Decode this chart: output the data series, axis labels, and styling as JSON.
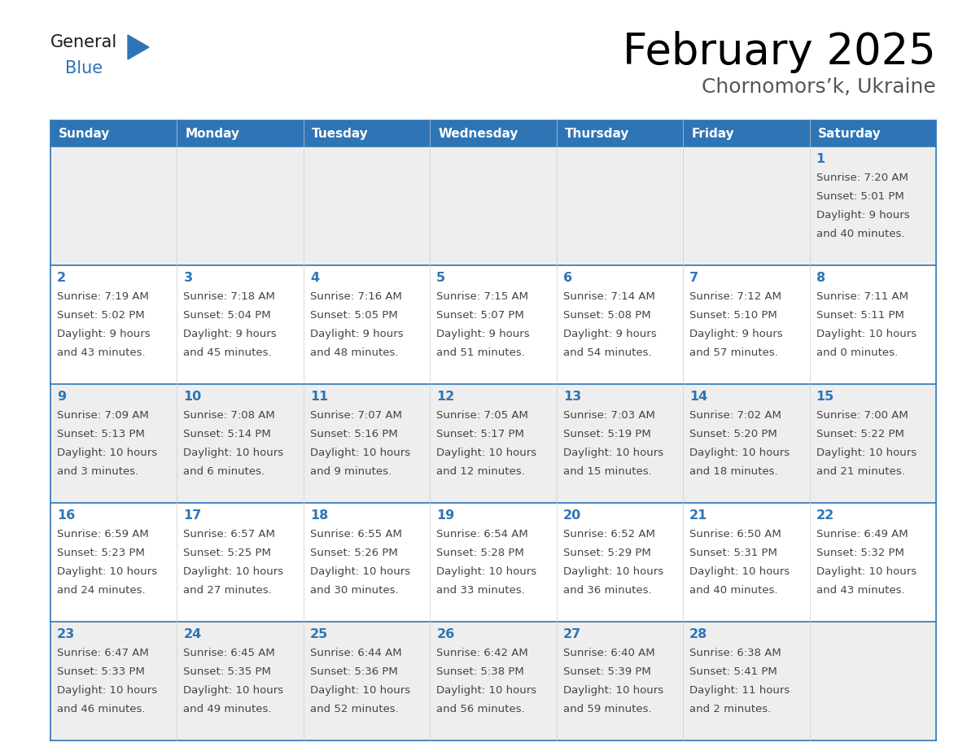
{
  "title": "February 2025",
  "subtitle": "Chornomors’k, Ukraine",
  "header_bg": "#2E75B6",
  "header_text_color": "#FFFFFF",
  "cell_bg_row0": "#EEEEEE",
  "cell_bg_row1": "#FFFFFF",
  "cell_bg_row2": "#EEEEEE",
  "cell_bg_row3": "#FFFFFF",
  "cell_bg_row4": "#EEEEEE",
  "border_color": "#2E75B6",
  "text_color": "#444444",
  "day_num_color": "#2E75B6",
  "day_headers": [
    "Sunday",
    "Monday",
    "Tuesday",
    "Wednesday",
    "Thursday",
    "Friday",
    "Saturday"
  ],
  "logo_general_color": "#1A1A1A",
  "logo_blue_color": "#2E75B6",
  "days": [
    {
      "day": 1,
      "col": 6,
      "row": 0,
      "sunrise": "7:20 AM",
      "sunset": "5:01 PM",
      "daylight": "9 hours",
      "daylight2": "and 40 minutes."
    },
    {
      "day": 2,
      "col": 0,
      "row": 1,
      "sunrise": "7:19 AM",
      "sunset": "5:02 PM",
      "daylight": "9 hours",
      "daylight2": "and 43 minutes."
    },
    {
      "day": 3,
      "col": 1,
      "row": 1,
      "sunrise": "7:18 AM",
      "sunset": "5:04 PM",
      "daylight": "9 hours",
      "daylight2": "and 45 minutes."
    },
    {
      "day": 4,
      "col": 2,
      "row": 1,
      "sunrise": "7:16 AM",
      "sunset": "5:05 PM",
      "daylight": "9 hours",
      "daylight2": "and 48 minutes."
    },
    {
      "day": 5,
      "col": 3,
      "row": 1,
      "sunrise": "7:15 AM",
      "sunset": "5:07 PM",
      "daylight": "9 hours",
      "daylight2": "and 51 minutes."
    },
    {
      "day": 6,
      "col": 4,
      "row": 1,
      "sunrise": "7:14 AM",
      "sunset": "5:08 PM",
      "daylight": "9 hours",
      "daylight2": "and 54 minutes."
    },
    {
      "day": 7,
      "col": 5,
      "row": 1,
      "sunrise": "7:12 AM",
      "sunset": "5:10 PM",
      "daylight": "9 hours",
      "daylight2": "and 57 minutes."
    },
    {
      "day": 8,
      "col": 6,
      "row": 1,
      "sunrise": "7:11 AM",
      "sunset": "5:11 PM",
      "daylight": "10 hours",
      "daylight2": "and 0 minutes."
    },
    {
      "day": 9,
      "col": 0,
      "row": 2,
      "sunrise": "7:09 AM",
      "sunset": "5:13 PM",
      "daylight": "10 hours",
      "daylight2": "and 3 minutes."
    },
    {
      "day": 10,
      "col": 1,
      "row": 2,
      "sunrise": "7:08 AM",
      "sunset": "5:14 PM",
      "daylight": "10 hours",
      "daylight2": "and 6 minutes."
    },
    {
      "day": 11,
      "col": 2,
      "row": 2,
      "sunrise": "7:07 AM",
      "sunset": "5:16 PM",
      "daylight": "10 hours",
      "daylight2": "and 9 minutes."
    },
    {
      "day": 12,
      "col": 3,
      "row": 2,
      "sunrise": "7:05 AM",
      "sunset": "5:17 PM",
      "daylight": "10 hours",
      "daylight2": "and 12 minutes."
    },
    {
      "day": 13,
      "col": 4,
      "row": 2,
      "sunrise": "7:03 AM",
      "sunset": "5:19 PM",
      "daylight": "10 hours",
      "daylight2": "and 15 minutes."
    },
    {
      "day": 14,
      "col": 5,
      "row": 2,
      "sunrise": "7:02 AM",
      "sunset": "5:20 PM",
      "daylight": "10 hours",
      "daylight2": "and 18 minutes."
    },
    {
      "day": 15,
      "col": 6,
      "row": 2,
      "sunrise": "7:00 AM",
      "sunset": "5:22 PM",
      "daylight": "10 hours",
      "daylight2": "and 21 minutes."
    },
    {
      "day": 16,
      "col": 0,
      "row": 3,
      "sunrise": "6:59 AM",
      "sunset": "5:23 PM",
      "daylight": "10 hours",
      "daylight2": "and 24 minutes."
    },
    {
      "day": 17,
      "col": 1,
      "row": 3,
      "sunrise": "6:57 AM",
      "sunset": "5:25 PM",
      "daylight": "10 hours",
      "daylight2": "and 27 minutes."
    },
    {
      "day": 18,
      "col": 2,
      "row": 3,
      "sunrise": "6:55 AM",
      "sunset": "5:26 PM",
      "daylight": "10 hours",
      "daylight2": "and 30 minutes."
    },
    {
      "day": 19,
      "col": 3,
      "row": 3,
      "sunrise": "6:54 AM",
      "sunset": "5:28 PM",
      "daylight": "10 hours",
      "daylight2": "and 33 minutes."
    },
    {
      "day": 20,
      "col": 4,
      "row": 3,
      "sunrise": "6:52 AM",
      "sunset": "5:29 PM",
      "daylight": "10 hours",
      "daylight2": "and 36 minutes."
    },
    {
      "day": 21,
      "col": 5,
      "row": 3,
      "sunrise": "6:50 AM",
      "sunset": "5:31 PM",
      "daylight": "10 hours",
      "daylight2": "and 40 minutes."
    },
    {
      "day": 22,
      "col": 6,
      "row": 3,
      "sunrise": "6:49 AM",
      "sunset": "5:32 PM",
      "daylight": "10 hours",
      "daylight2": "and 43 minutes."
    },
    {
      "day": 23,
      "col": 0,
      "row": 4,
      "sunrise": "6:47 AM",
      "sunset": "5:33 PM",
      "daylight": "10 hours",
      "daylight2": "and 46 minutes."
    },
    {
      "day": 24,
      "col": 1,
      "row": 4,
      "sunrise": "6:45 AM",
      "sunset": "5:35 PM",
      "daylight": "10 hours",
      "daylight2": "and 49 minutes."
    },
    {
      "day": 25,
      "col": 2,
      "row": 4,
      "sunrise": "6:44 AM",
      "sunset": "5:36 PM",
      "daylight": "10 hours",
      "daylight2": "and 52 minutes."
    },
    {
      "day": 26,
      "col": 3,
      "row": 4,
      "sunrise": "6:42 AM",
      "sunset": "5:38 PM",
      "daylight": "10 hours",
      "daylight2": "and 56 minutes."
    },
    {
      "day": 27,
      "col": 4,
      "row": 4,
      "sunrise": "6:40 AM",
      "sunset": "5:39 PM",
      "daylight": "10 hours",
      "daylight2": "and 59 minutes."
    },
    {
      "day": 28,
      "col": 5,
      "row": 4,
      "sunrise": "6:38 AM",
      "sunset": "5:41 PM",
      "daylight": "11 hours",
      "daylight2": "and 2 minutes."
    }
  ]
}
